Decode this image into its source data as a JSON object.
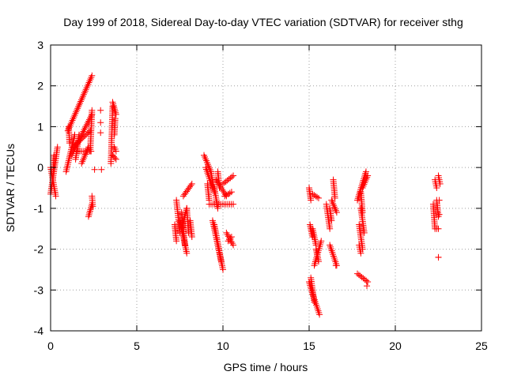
{
  "chart_data": {
    "type": "scatter",
    "title": "Day 199 of 2018, Sidereal Day-to-day VTEC variation (SDTVAR) for receiver sthg",
    "xlabel": "GPS time / hours",
    "ylabel": "SDTVAR / TECUs",
    "xlim": [
      0,
      25
    ],
    "ylim": [
      -4,
      3
    ],
    "xticks": [
      0,
      5,
      10,
      15,
      20,
      25
    ],
    "yticks": [
      -4,
      -3,
      -2,
      -1,
      0,
      1,
      2,
      3
    ],
    "grid": true,
    "marker": "+",
    "color": "#ff0000",
    "series": [
      {
        "name": "SDTVAR",
        "segments": [
          [
            0.0,
            -0.65,
            0.4,
            0.5
          ],
          [
            0.0,
            0.0,
            0.3,
            -0.7
          ],
          [
            0.15,
            -0.1,
            0.2,
            0.3
          ],
          [
            0.9,
            -0.1,
            1.4,
            0.8
          ],
          [
            1.0,
            0.9,
            2.4,
            2.25
          ],
          [
            1.05,
            1.0,
            1.1,
            0.6
          ],
          [
            1.2,
            0.3,
            2.4,
            1.3
          ],
          [
            1.3,
            0.5,
            2.3,
            0.9
          ],
          [
            1.45,
            0.2,
            1.65,
            0.8
          ],
          [
            1.6,
            0.4,
            2.35,
            0.4
          ],
          [
            1.8,
            0.1,
            2.2,
            0.5
          ],
          [
            2.2,
            -1.2,
            2.4,
            -0.9
          ],
          [
            2.4,
            -0.7,
            2.45,
            -0.95
          ],
          [
            2.3,
            0.4,
            2.4,
            1.4
          ],
          [
            3.5,
            0.1,
            3.6,
            1.5
          ],
          [
            3.6,
            1.6,
            3.8,
            1.3
          ],
          [
            3.7,
            0.8,
            3.75,
            1.2
          ],
          [
            3.6,
            0.3,
            3.8,
            0.2
          ],
          [
            3.7,
            0.5,
            3.8,
            0.4
          ],
          [
            7.2,
            -1.4,
            7.3,
            -1.8
          ],
          [
            7.3,
            -0.8,
            7.5,
            -1.6
          ],
          [
            7.5,
            -1.3,
            7.9,
            -2.1
          ],
          [
            7.6,
            -1.1,
            7.8,
            -1.9
          ],
          [
            7.9,
            -1.0,
            8.0,
            -1.6
          ],
          [
            7.7,
            -0.7,
            8.2,
            -0.4
          ],
          [
            7.6,
            -1.5,
            7.9,
            -1.0
          ],
          [
            8.1,
            -1.3,
            8.2,
            -1.7
          ],
          [
            8.9,
            0.3,
            9.3,
            -0.1
          ],
          [
            9.0,
            0.0,
            9.4,
            -0.5
          ],
          [
            9.1,
            -0.4,
            9.2,
            -0.8
          ],
          [
            9.3,
            -0.1,
            9.5,
            -0.6
          ],
          [
            9.2,
            -0.9,
            10.6,
            -0.9
          ],
          [
            9.5,
            -0.5,
            9.7,
            -1.0
          ],
          [
            9.6,
            -0.3,
            10.2,
            -0.7
          ],
          [
            9.7,
            -0.1,
            9.8,
            -0.5
          ],
          [
            10.0,
            -0.4,
            10.6,
            -0.2
          ],
          [
            10.1,
            -0.7,
            10.5,
            -0.6
          ],
          [
            9.4,
            -1.3,
            10.0,
            -2.5
          ],
          [
            9.5,
            -1.4,
            9.9,
            -2.3
          ],
          [
            10.2,
            -1.6,
            10.6,
            -1.9
          ],
          [
            10.3,
            -1.8,
            10.5,
            -1.7
          ],
          [
            15.0,
            -0.5,
            15.1,
            -0.8
          ],
          [
            15.2,
            -0.65,
            15.55,
            -0.75
          ],
          [
            15.05,
            -1.4,
            15.2,
            -1.7
          ],
          [
            15.2,
            -1.5,
            15.4,
            -1.9
          ],
          [
            15.0,
            -2.8,
            15.2,
            -3.1
          ],
          [
            15.1,
            -2.7,
            15.3,
            -3.3
          ],
          [
            15.2,
            -3.1,
            15.6,
            -3.6
          ],
          [
            15.3,
            -2.4,
            15.7,
            -1.8
          ],
          [
            15.4,
            -2.0,
            15.55,
            -2.3
          ],
          [
            16.0,
            -0.9,
            16.2,
            -1.5
          ],
          [
            16.4,
            -0.3,
            16.5,
            -0.75
          ],
          [
            16.3,
            -0.8,
            16.6,
            -1.1
          ],
          [
            16.2,
            -1.9,
            16.6,
            -2.4
          ],
          [
            16.2,
            -1.0,
            16.3,
            -1.3
          ],
          [
            17.8,
            -2.6,
            18.4,
            -2.8
          ],
          [
            17.9,
            -1.4,
            18.1,
            -2.0
          ],
          [
            17.8,
            -0.8,
            18.3,
            -0.1
          ],
          [
            18.0,
            -1.0,
            18.2,
            -1.6
          ],
          [
            18.1,
            -0.5,
            18.4,
            -0.2
          ],
          [
            17.9,
            -1.9,
            18.0,
            -2.1
          ],
          [
            18.0,
            -0.6,
            18.1,
            -1.1
          ],
          [
            22.3,
            -0.3,
            22.4,
            -0.5
          ],
          [
            22.5,
            -0.2,
            22.6,
            -0.4
          ],
          [
            22.2,
            -0.9,
            22.3,
            -1.5
          ],
          [
            22.4,
            -0.8,
            22.5,
            -1.2
          ],
          [
            22.4,
            -1.5,
            22.5,
            -1.5
          ],
          [
            22.5,
            -2.2,
            22.5,
            -2.2
          ]
        ],
        "points": [
          [
            2.55,
            -0.05
          ],
          [
            2.9,
            1.4
          ],
          [
            2.9,
            1.1
          ],
          [
            2.9,
            0.85
          ],
          [
            2.95,
            -0.05
          ],
          [
            16.55,
            -2.4
          ],
          [
            18.35,
            -2.9
          ],
          [
            22.55,
            -1.15
          ],
          [
            22.55,
            -0.8
          ]
        ]
      }
    ]
  }
}
